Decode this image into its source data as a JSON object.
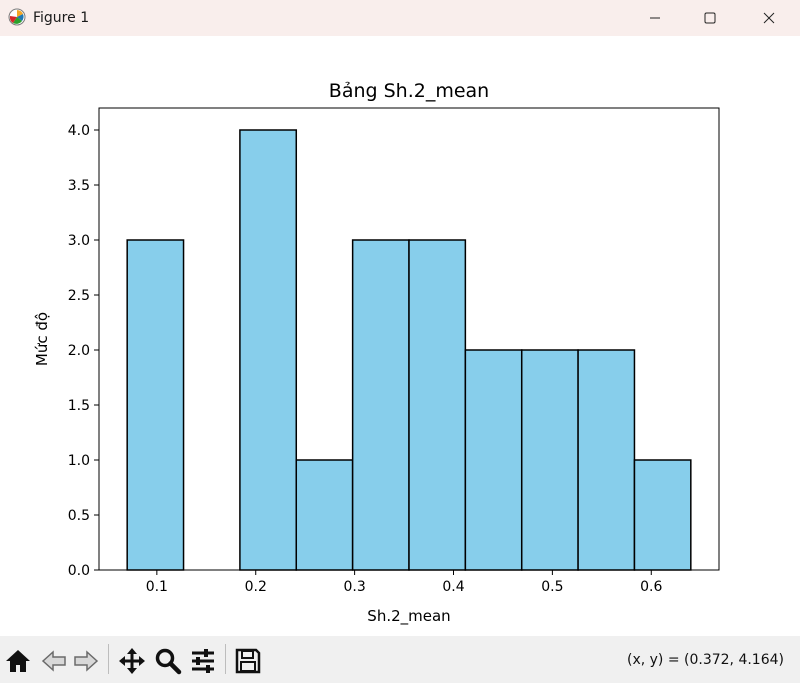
{
  "window": {
    "title": "Figure 1",
    "icons": {
      "app": "matplotlib-icon",
      "minimize": "minimize-icon",
      "maximize": "maximize-icon",
      "close": "close-icon"
    }
  },
  "toolbar": {
    "buttons": [
      {
        "name": "home-icon"
      },
      {
        "name": "back-arrow-icon"
      },
      {
        "name": "forward-arrow-icon"
      },
      {
        "name": "pan-icon"
      },
      {
        "name": "zoom-icon"
      },
      {
        "name": "configure-subplots-icon"
      },
      {
        "name": "save-icon"
      }
    ],
    "coordinates": "(x, y) = (0.372, 4.164)"
  },
  "chart_data": {
    "type": "bar",
    "title": "Bảng Sh.2_mean",
    "xlabel": "Sh.2_mean",
    "ylabel": "Mức độ",
    "bins": [
      {
        "x0": 0.07,
        "x1": 0.127,
        "count": 3
      },
      {
        "x0": 0.127,
        "x1": 0.184,
        "count": 0
      },
      {
        "x0": 0.184,
        "x1": 0.241,
        "count": 4
      },
      {
        "x0": 0.241,
        "x1": 0.298,
        "count": 1
      },
      {
        "x0": 0.298,
        "x1": 0.355,
        "count": 3
      },
      {
        "x0": 0.355,
        "x1": 0.412,
        "count": 3
      },
      {
        "x0": 0.412,
        "x1": 0.469,
        "count": 2
      },
      {
        "x0": 0.469,
        "x1": 0.526,
        "count": 2
      },
      {
        "x0": 0.526,
        "x1": 0.583,
        "count": 2
      },
      {
        "x0": 0.583,
        "x1": 0.64,
        "count": 1
      }
    ],
    "xlim": [
      0.0415,
      0.6685
    ],
    "ylim": [
      0,
      4.2
    ],
    "xticks": [
      "0.1",
      "0.2",
      "0.3",
      "0.4",
      "0.5",
      "0.6"
    ],
    "yticks": [
      "0.0",
      "0.5",
      "1.0",
      "1.5",
      "2.0",
      "2.5",
      "3.0",
      "3.5",
      "4.0"
    ],
    "grid": false,
    "bar_color": "#87ceeb",
    "edge_color": "#000000"
  }
}
